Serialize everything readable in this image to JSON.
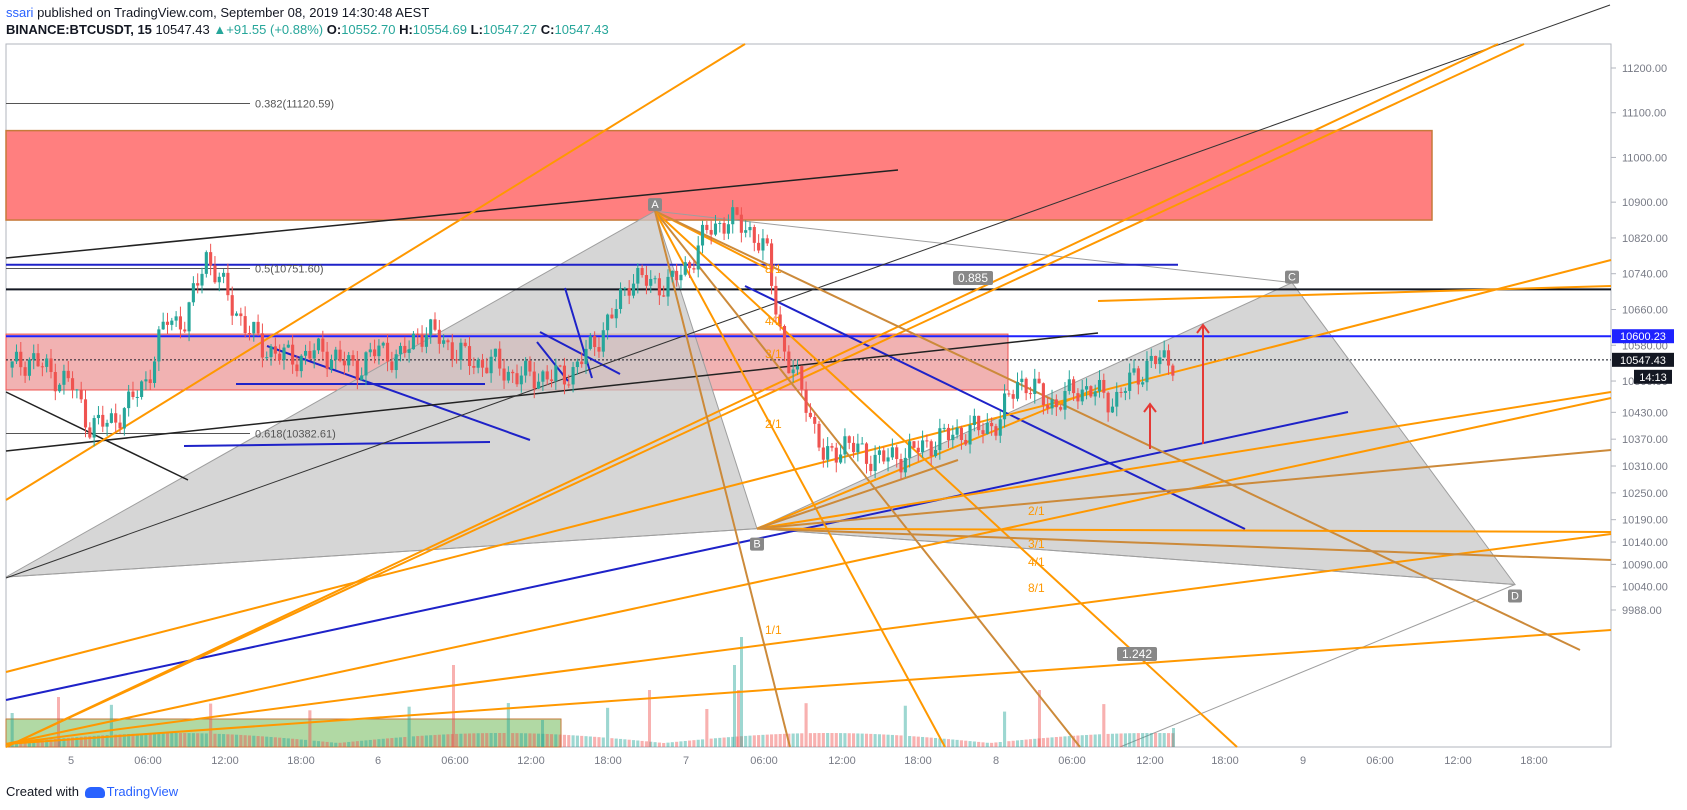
{
  "header": {
    "author": "ssari",
    "published_text": " published on TradingView.com, September 08, 2019 14:30:48 AEST",
    "symbol": "BINANCE:BTCUSDT, 15",
    "last": "10547.43",
    "change": "+91.55 (+0.88%)",
    "o_label": "O:",
    "o": "10552.70",
    "h_label": "H:",
    "h": "10554.69",
    "l_label": "L:",
    "l": "10547.27",
    "c_label": "C:",
    "c": "10547.43"
  },
  "footer": {
    "created_with": "Created with",
    "brand": "TradingView"
  },
  "colors": {
    "up": "#26a69a",
    "down": "#ef5350",
    "resistance_zone": "#ff7f7f",
    "support_zone": "#efa5a5",
    "volume_zone": "#a8d59a",
    "pattern": "#c8c8c8",
    "fan": "#ff9800",
    "trend": "#1e22c8",
    "price_label": "#131722",
    "level_label": "#1e22ff"
  },
  "chart_data": {
    "type": "candlestick",
    "symbol": "BINANCE:BTCUSDT",
    "interval": "15",
    "y_axis": {
      "ticks": [
        11200,
        11100,
        11000,
        10900,
        10820,
        10740,
        10660,
        10580,
        10500,
        10430,
        10370,
        10310,
        10250,
        10190,
        10140,
        10090,
        10040,
        9988
      ],
      "tick_labels": [
        "11200.00",
        "11100.00",
        "11000.00",
        "10900.00",
        "10820.00",
        "10740.00",
        "10660.00",
        "10580.00",
        "10500.00",
        "10430.00",
        "10370.00",
        "10310.00",
        "10250.00",
        "10190.00",
        "10140.00",
        "10090.00",
        "10040.00",
        "9988.00"
      ]
    },
    "x_axis": {
      "tick_labels": [
        "5",
        "06:00",
        "12:00",
        "18:00",
        "6",
        "06:00",
        "12:00",
        "18:00",
        "7",
        "06:00",
        "12:00",
        "18:00",
        "8",
        "06:00",
        "12:00",
        "18:00",
        "9",
        "06:00",
        "12:00",
        "18:00"
      ]
    },
    "price_labels": [
      {
        "text": "10600.23",
        "price": 10600.23,
        "style": "blue"
      },
      {
        "text": "10547.43",
        "price": 10547.43,
        "style": "black"
      },
      {
        "text": "14:13",
        "price": 10500,
        "style": "black"
      }
    ],
    "closes": [
      10530,
      10552,
      10515,
      10498,
      10402,
      10405,
      10445,
      10508,
      10640,
      10632,
      10785,
      10700,
      10625,
      10575,
      10555,
      10552,
      10570,
      10542,
      10532,
      10575,
      10545,
      10610,
      10602,
      10562,
      10540,
      10538,
      10510,
      10512,
      10508,
      10522,
      10580,
      10642,
      10735,
      10718,
      10715,
      10762,
      10840,
      10860,
      10845,
      10785,
      10548,
      10465,
      10318,
      10365,
      10335,
      10325,
      10332,
      10352,
      10372,
      10385,
      10392,
      10408,
      10505,
      10472,
      10445,
      10485,
      10475,
      10455,
      10510,
      10545,
      10547.43
    ],
    "fib_levels": [
      {
        "label": "0.382(11120.59)",
        "price": 11120.59
      },
      {
        "label": "0.5(10751.60)",
        "price": 10751.6
      },
      {
        "label": "0.618(10382.61)",
        "price": 10382.61
      }
    ],
    "pattern_points": [
      {
        "label": "A",
        "price": 10880
      },
      {
        "label": "B",
        "price": 10170
      },
      {
        "label": "C",
        "price": 10720
      },
      {
        "label": "D",
        "price": 10045
      }
    ],
    "pattern_ratios": [
      "0.885",
      "1.242"
    ],
    "fan_labels_a": [
      "8/1",
      "4/1",
      "3/1",
      "2/1"
    ],
    "fan_labels_b": [
      "2/1",
      "3/1",
      "4/1",
      "8/1",
      "1/1"
    ],
    "zones": [
      {
        "name": "resistance",
        "from": 10860,
        "to": 11060
      },
      {
        "name": "support",
        "from": 10480,
        "to": 10605
      }
    ],
    "levels": [
      {
        "price": 10760,
        "color": "#1e22c8"
      },
      {
        "price": 10705,
        "color": "#131722"
      },
      {
        "price": 10600.23,
        "color": "#1e22ff"
      },
      {
        "price": 10547.43,
        "color": "#131722",
        "dotted": true
      }
    ]
  }
}
